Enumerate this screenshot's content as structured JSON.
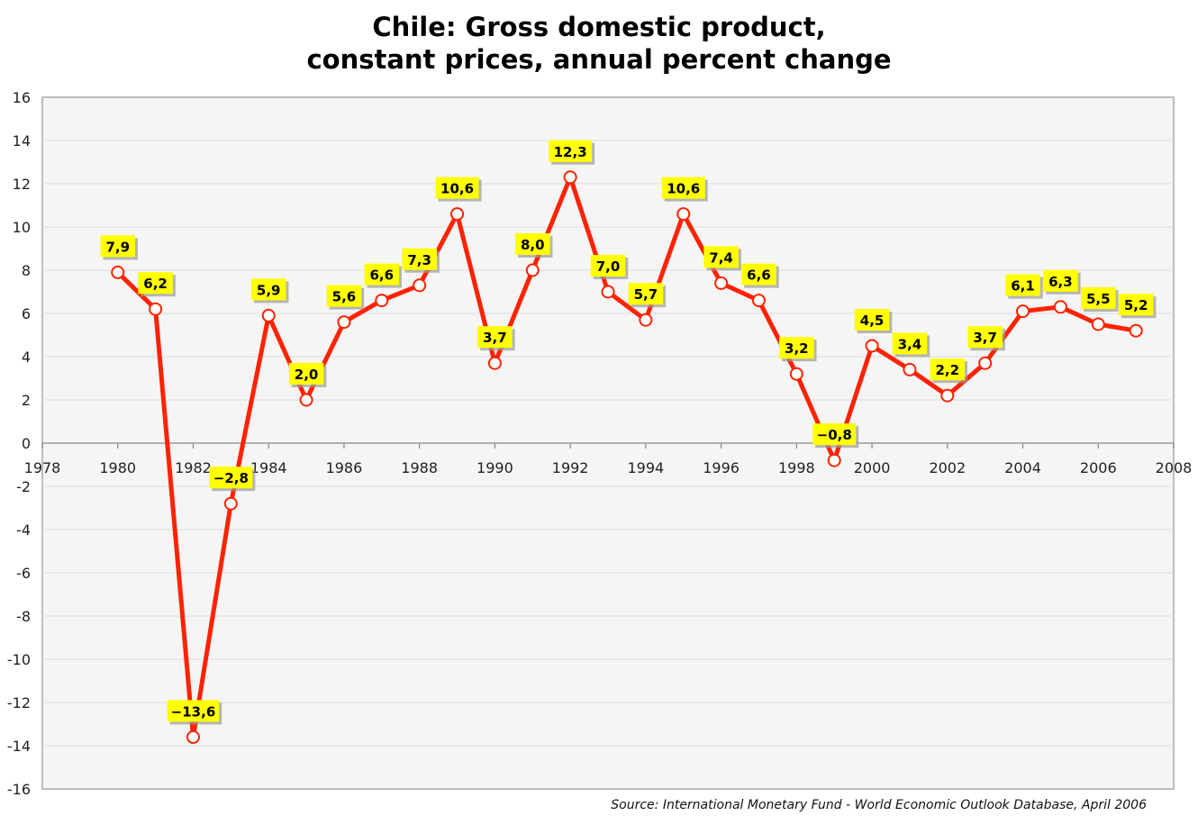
{
  "chart_data": {
    "type": "line",
    "title_line1": "Chile: Gross domestic product,",
    "title_line2": "constant prices, annual percent change",
    "xlabel": "",
    "ylabel": "",
    "xlim": [
      1978,
      2008
    ],
    "ylim": [
      -16,
      16
    ],
    "x_ticks": [
      "1978",
      "1980",
      "1982",
      "1984",
      "1986",
      "1988",
      "1990",
      "1992",
      "1994",
      "1996",
      "1998",
      "2000",
      "2002",
      "2004",
      "2006",
      "2008"
    ],
    "y_ticks": [
      "16",
      "14",
      "12",
      "10",
      "8",
      "6",
      "4",
      "2",
      "0",
      "-2",
      "-4",
      "-6",
      "-8",
      "-10",
      "-12",
      "-14",
      "-16"
    ],
    "grid": true,
    "legend": "none",
    "series": [
      {
        "x": [
          1980,
          1981,
          1982,
          1983,
          1984,
          1985,
          1986,
          1987,
          1988,
          1989,
          1990,
          1991,
          1992,
          1993,
          1994,
          1995,
          1996,
          1997,
          1998,
          1999,
          2000,
          2001,
          2002,
          2003,
          2004,
          2005,
          2006,
          2007
        ],
        "values": [
          7.9,
          6.2,
          -13.6,
          -2.8,
          5.9,
          2.0,
          5.6,
          6.6,
          7.3,
          10.6,
          3.7,
          8.0,
          12.3,
          7.0,
          5.7,
          10.6,
          7.4,
          6.6,
          3.2,
          -0.8,
          4.5,
          3.4,
          2.2,
          3.7,
          6.1,
          6.3,
          5.5,
          5.2
        ],
        "labels": [
          "7,9",
          "6,2",
          "−13,6",
          "−2,8",
          "5,9",
          "2,0",
          "5,6",
          "6,6",
          "7,3",
          "10,6",
          "3,7",
          "8,0",
          "12,3",
          "7,0",
          "5,7",
          "10,6",
          "7,4",
          "6,6",
          "3,2",
          "−0,8",
          "4,5",
          "3,4",
          "2,2",
          "3,7",
          "6,1",
          "6,3",
          "5,5",
          "5,2"
        ]
      }
    ],
    "colors": {
      "line": "#ff2200",
      "marker_fill": "#ffffff",
      "label_bg": "#ffff00",
      "plot_bg": "#f5f5f5",
      "grid": "#dddddd"
    },
    "source": "Source: International Monetary Fund - World Economic Outlook Database, April 2006"
  }
}
